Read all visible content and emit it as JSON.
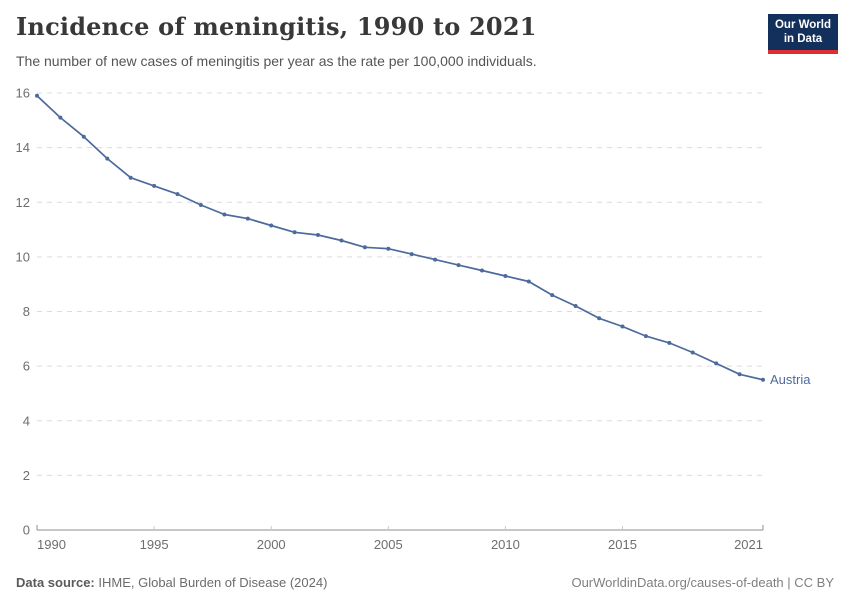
{
  "header": {
    "title": "Incidence of meningitis, 1990 to 2021",
    "subtitle": "The number of new cases of meningitis per year as the rate per 100,000 individuals.",
    "logo": {
      "line1": "Our World",
      "line2": "in Data",
      "bg_color": "#12305B",
      "accent_color": "#DC2F2F"
    }
  },
  "chart_data": {
    "type": "line",
    "title": "Incidence of meningitis, 1990 to 2021",
    "xlabel": "",
    "ylabel": "",
    "xlim": [
      1990,
      2021
    ],
    "ylim": [
      0,
      16
    ],
    "x_ticks": [
      1990,
      1995,
      2000,
      2005,
      2010,
      2015,
      2021
    ],
    "y_ticks": [
      0,
      2,
      4,
      6,
      8,
      10,
      12,
      14,
      16
    ],
    "grid": "horizontal-dashed",
    "legend_position": "end-of-line-label",
    "x": [
      1990,
      1991,
      1992,
      1993,
      1994,
      1995,
      1996,
      1997,
      1998,
      1999,
      2000,
      2001,
      2002,
      2003,
      2004,
      2005,
      2006,
      2007,
      2008,
      2009,
      2010,
      2011,
      2012,
      2013,
      2014,
      2015,
      2016,
      2017,
      2018,
      2019,
      2020,
      2021
    ],
    "series": [
      {
        "name": "Austria",
        "color": "#4C6A9C",
        "values": [
          15.9,
          15.1,
          14.4,
          13.6,
          12.9,
          12.6,
          12.3,
          11.9,
          11.55,
          11.4,
          11.15,
          10.9,
          10.8,
          10.6,
          10.35,
          10.3,
          10.1,
          9.9,
          9.7,
          9.5,
          9.3,
          9.1,
          8.6,
          8.2,
          7.75,
          7.45,
          7.1,
          6.85,
          6.5,
          6.1,
          5.7,
          5.5
        ]
      }
    ]
  },
  "footer": {
    "data_source_label": "Data source:",
    "data_source_value": " IHME, Global Burden of Disease (2024)",
    "link_text": "OurWorldinData.org/causes-of-death | CC BY"
  },
  "colors": {
    "line": "#4C6A9C",
    "grid": "#dcdcdc",
    "axis": "#8f8f8f",
    "tick_text": "#6e6e6e"
  }
}
